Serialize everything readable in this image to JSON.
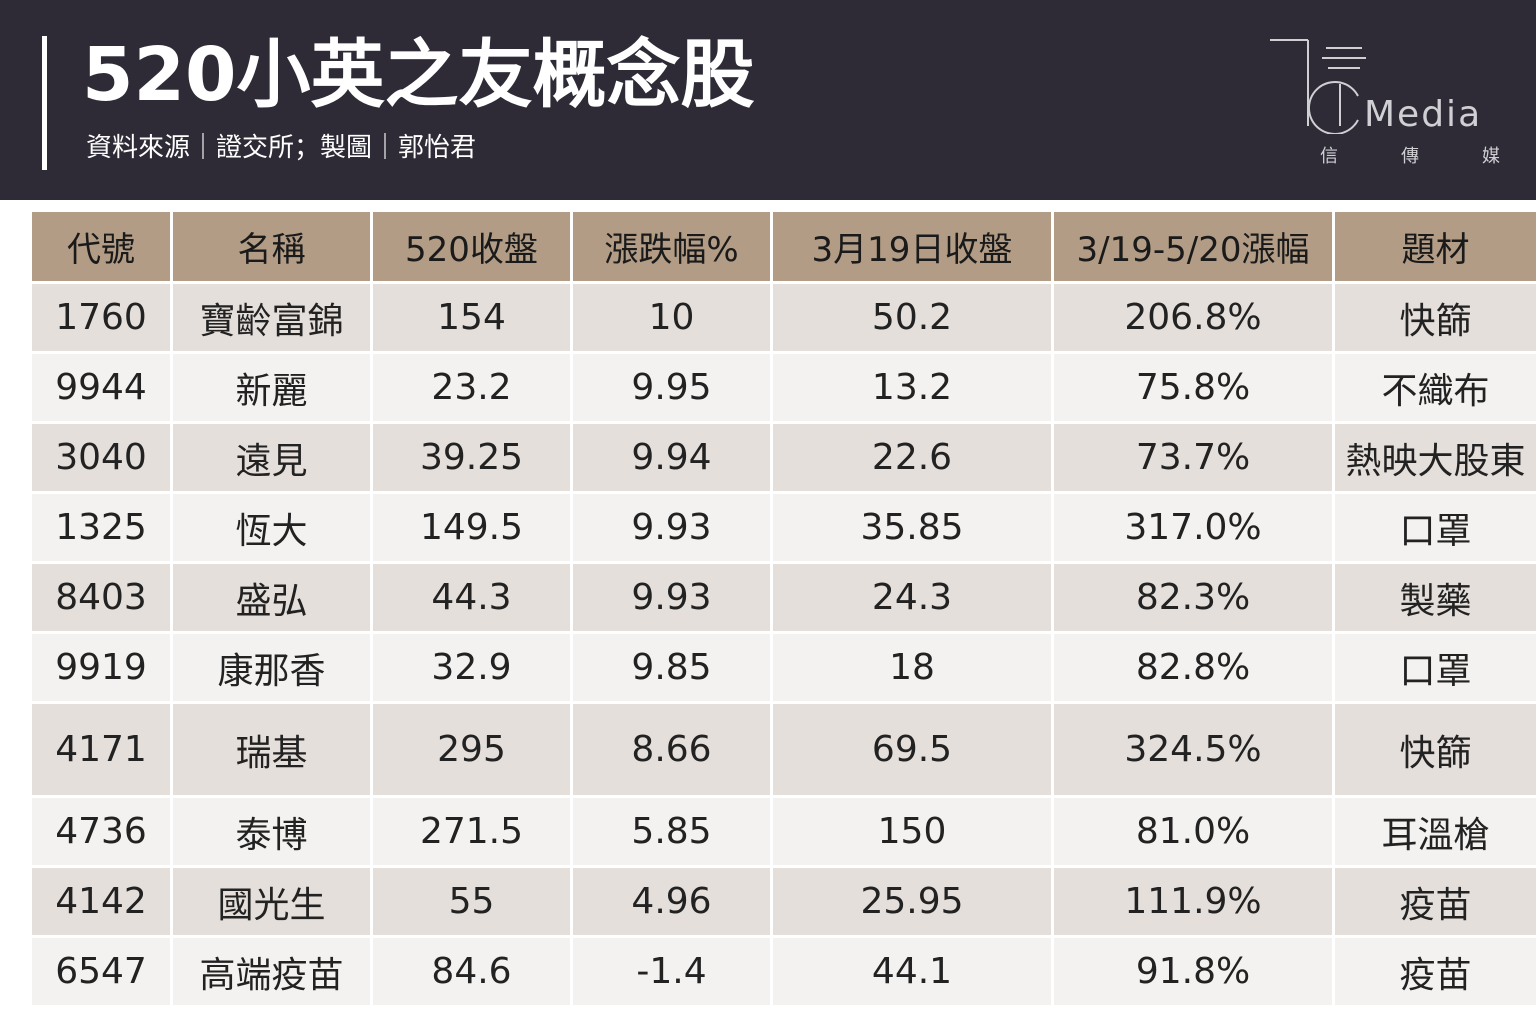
{
  "header": {
    "title": "520小英之友概念股",
    "source": "資料來源｜證交所；製圖｜郭怡君"
  },
  "logo": {
    "word": "Media",
    "sub": [
      "信",
      "傳",
      "媒"
    ]
  },
  "colors": {
    "header_bg": "#2e2b36",
    "table_header_bg": "#b29c85",
    "row_odd_bg": "#e5dfdb",
    "row_even_bg": "#f4f2f0"
  },
  "chart_data": {
    "type": "table",
    "title": "520小英之友概念股",
    "columns": [
      "代號",
      "名稱",
      "520收盤",
      "漲跌幅%",
      "3月19日收盤",
      "3/19-5/20漲幅",
      "題材"
    ],
    "rows": [
      [
        "1760",
        "寶齡富錦",
        "154",
        "10",
        "50.2",
        "206.8%",
        "快篩"
      ],
      [
        "9944",
        "新麗",
        "23.2",
        "9.95",
        "13.2",
        "75.8%",
        "不織布"
      ],
      [
        "3040",
        "遠見",
        "39.25",
        "9.94",
        "22.6",
        "73.7%",
        "熱映大股東"
      ],
      [
        "1325",
        "恆大",
        "149.5",
        "9.93",
        "35.85",
        "317.0%",
        "口罩"
      ],
      [
        "8403",
        "盛弘",
        "44.3",
        "9.93",
        "24.3",
        "82.3%",
        "製藥"
      ],
      [
        "9919",
        "康那香",
        "32.9",
        "9.85",
        "18",
        "82.8%",
        "口罩"
      ],
      [
        "4171",
        "瑞基",
        "295",
        "8.66",
        "69.5",
        "324.5%",
        "快篩"
      ],
      [
        "4736",
        "泰博",
        "271.5",
        "5.85",
        "150",
        "81.0%",
        "耳溫槍"
      ],
      [
        "4142",
        "國光生",
        "55",
        "4.96",
        "25.95",
        "111.9%",
        "疫苗"
      ],
      [
        "6547",
        "高端疫苗",
        "84.6",
        "-1.4",
        "44.1",
        "91.8%",
        "疫苗"
      ]
    ]
  }
}
